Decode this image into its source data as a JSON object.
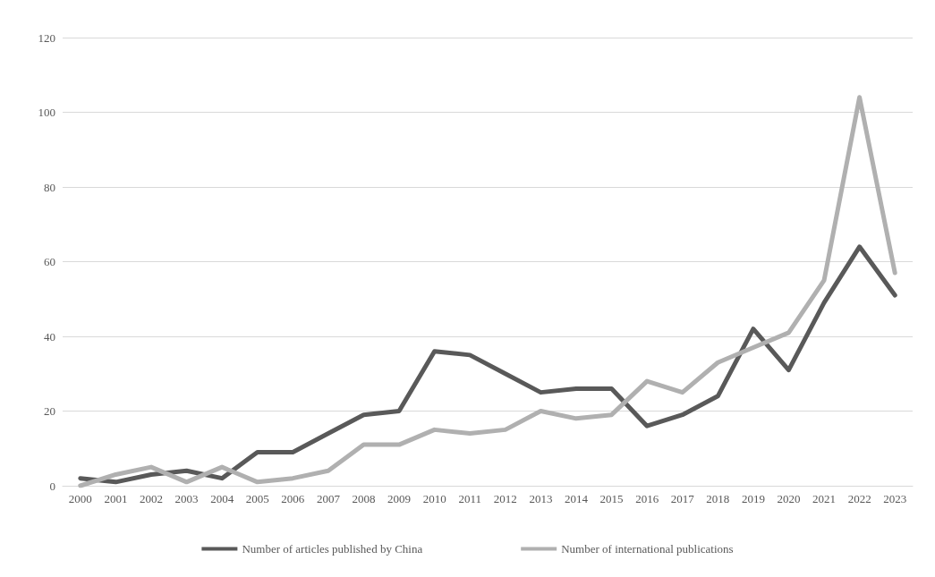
{
  "chart_data": {
    "type": "line",
    "categories": [
      "2000",
      "2001",
      "2002",
      "2003",
      "2004",
      "2005",
      "2006",
      "2007",
      "2008",
      "2009",
      "2010",
      "2011",
      "2012",
      "2013",
      "2014",
      "2015",
      "2016",
      "2017",
      "2018",
      "2019",
      "2020",
      "2021",
      "2022",
      "2023"
    ],
    "series": [
      {
        "name": "Number of articles published by China",
        "color": "#595959",
        "values": [
          2,
          1,
          3,
          4,
          2,
          9,
          9,
          14,
          19,
          20,
          36,
          35,
          30,
          25,
          26,
          26,
          16,
          19,
          24,
          42,
          31,
          49,
          64,
          51
        ]
      },
      {
        "name": "Number of international publications",
        "color": "#b0b0b0",
        "values": [
          0,
          3,
          5,
          1,
          5,
          1,
          2,
          4,
          11,
          11,
          15,
          14,
          15,
          20,
          18,
          19,
          28,
          25,
          33,
          37,
          41,
          55,
          104,
          57
        ]
      }
    ],
    "ylim": [
      0,
      120
    ],
    "yticks": [
      0,
      20,
      40,
      60,
      80,
      100,
      120
    ],
    "grid": "y",
    "legend": "bottom",
    "marker": "none",
    "line_style": "solid"
  }
}
